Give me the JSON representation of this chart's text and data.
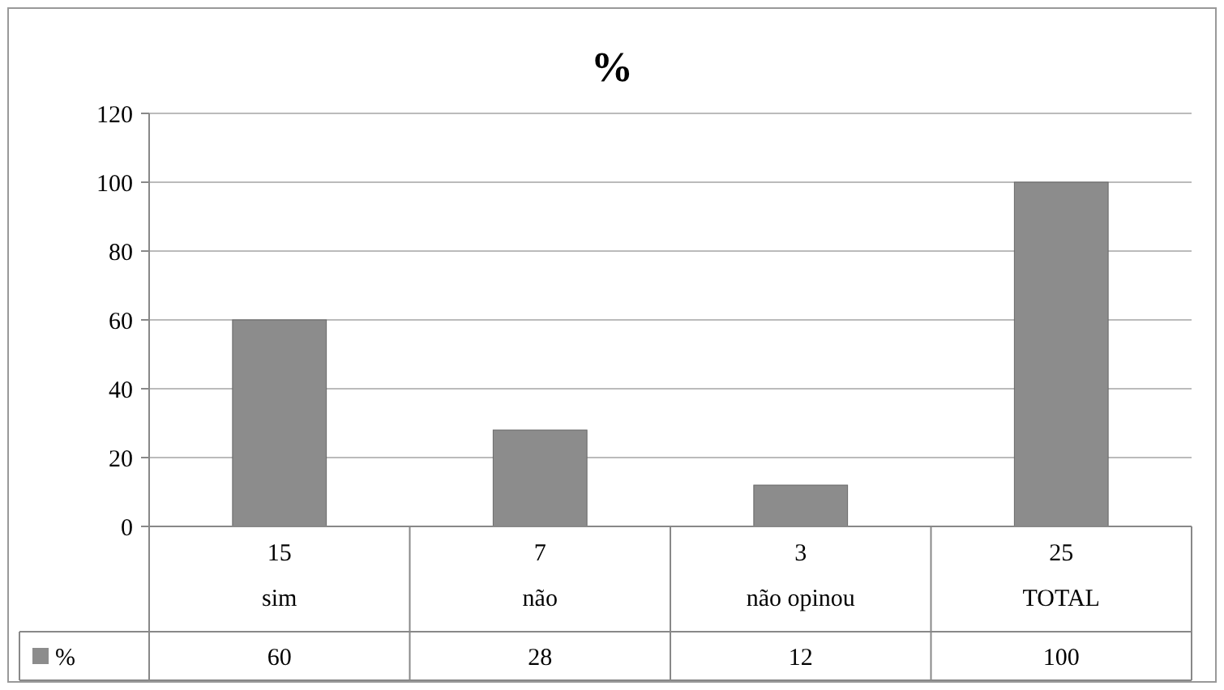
{
  "chart_data": {
    "type": "bar",
    "title": "%",
    "categories": [
      "15\nsim",
      "7\nnão",
      "3\nnão opinou",
      "25\nTOTAL"
    ],
    "series": [
      {
        "name": "%",
        "color": "#8c8c8c",
        "values": [
          60,
          28,
          12,
          100
        ]
      }
    ],
    "ylim": [
      0,
      120
    ],
    "yticks": [
      0,
      20,
      40,
      60,
      80,
      100,
      120
    ],
    "grid": "y",
    "data_labels": true,
    "legend": "bottom"
  }
}
